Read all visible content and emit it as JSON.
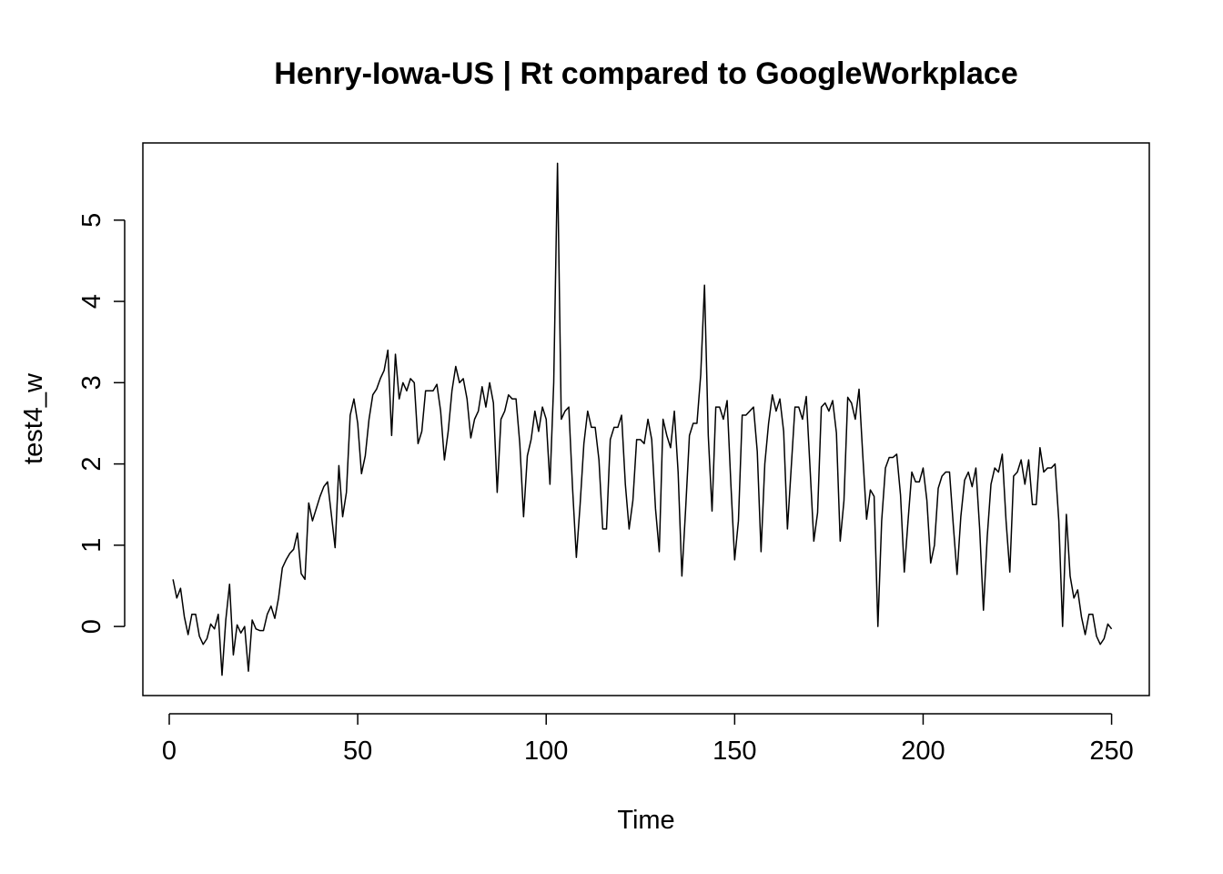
{
  "chart_data": {
    "type": "line",
    "title": "Henry-Iowa-US | Rt compared to GoogleWorkplace",
    "xlabel": "Time",
    "ylabel": "test4_w",
    "xlim": [
      -7,
      260
    ],
    "ylim": [
      -0.85,
      5.95
    ],
    "x_ticks": [
      0,
      50,
      100,
      150,
      200,
      250
    ],
    "y_ticks": [
      0,
      1,
      2,
      3,
      4,
      5
    ],
    "x_tick_labels": [
      "0",
      "50",
      "100",
      "150",
      "200",
      "250"
    ],
    "y_tick_labels": [
      "0",
      "1",
      "2",
      "3",
      "4",
      "5"
    ],
    "grid": false,
    "legend": "none",
    "x_start": 1,
    "series": [
      {
        "values": [
          0.58,
          0.35,
          0.47,
          0.12,
          -0.1,
          0.15,
          0.15,
          -0.12,
          -0.22,
          -0.15,
          0.03,
          -0.03,
          0.15,
          -0.6,
          0.08,
          0.52,
          -0.35,
          0.02,
          -0.08,
          0.0,
          -0.55,
          0.08,
          -0.03,
          -0.05,
          -0.05,
          0.15,
          0.25,
          0.1,
          0.35,
          0.72,
          0.82,
          0.9,
          0.95,
          1.15,
          0.65,
          0.58,
          1.52,
          1.3,
          1.45,
          1.6,
          1.72,
          1.78,
          1.38,
          0.97,
          1.98,
          1.35,
          1.65,
          2.6,
          2.8,
          2.5,
          1.88,
          2.1,
          2.55,
          2.85,
          2.92,
          3.05,
          3.15,
          3.4,
          2.35,
          3.35,
          2.8,
          3.0,
          2.9,
          3.05,
          3.0,
          2.25,
          2.4,
          2.9,
          2.9,
          2.9,
          2.98,
          2.65,
          2.05,
          2.4,
          2.9,
          3.2,
          3.0,
          3.05,
          2.8,
          2.32,
          2.55,
          2.65,
          2.95,
          2.7,
          3.0,
          2.75,
          1.65,
          2.55,
          2.65,
          2.85,
          2.8,
          2.8,
          2.25,
          1.35,
          2.1,
          2.3,
          2.65,
          2.4,
          2.7,
          2.55,
          1.75,
          3.0,
          5.7,
          2.55,
          2.65,
          2.7,
          1.7,
          0.85,
          1.5,
          2.25,
          2.65,
          2.45,
          2.45,
          2.05,
          1.2,
          1.2,
          2.3,
          2.45,
          2.45,
          2.6,
          1.75,
          1.2,
          1.55,
          2.3,
          2.3,
          2.25,
          2.55,
          2.3,
          1.45,
          0.92,
          2.55,
          2.35,
          2.2,
          2.65,
          1.9,
          0.62,
          1.45,
          2.35,
          2.5,
          2.5,
          3.1,
          4.2,
          2.35,
          1.42,
          2.7,
          2.7,
          2.55,
          2.78,
          1.75,
          0.82,
          1.3,
          2.6,
          2.6,
          2.65,
          2.7,
          2.15,
          0.92,
          2.0,
          2.5,
          2.85,
          2.65,
          2.8,
          2.4,
          1.2,
          1.95,
          2.7,
          2.7,
          2.55,
          2.83,
          1.95,
          1.05,
          1.4,
          2.7,
          2.75,
          2.65,
          2.78,
          2.38,
          1.05,
          1.55,
          2.82,
          2.75,
          2.55,
          2.92,
          2.1,
          1.32,
          1.68,
          1.6,
          0.0,
          1.3,
          1.95,
          2.08,
          2.08,
          2.12,
          1.62,
          0.67,
          1.3,
          1.9,
          1.78,
          1.78,
          1.95,
          1.55,
          0.78,
          1.0,
          1.7,
          1.85,
          1.9,
          1.9,
          1.25,
          0.64,
          1.35,
          1.8,
          1.9,
          1.72,
          1.95,
          1.2,
          0.2,
          1.1,
          1.75,
          1.95,
          1.9,
          2.12,
          1.3,
          0.67,
          1.85,
          1.9,
          2.05,
          1.75,
          2.05,
          1.5,
          1.5,
          2.2,
          1.9,
          1.95,
          1.95,
          2.0,
          1.3,
          0.0,
          1.38,
          0.62,
          0.35,
          0.45,
          0.12,
          -0.1,
          0.15,
          0.15,
          -0.12,
          -0.22,
          -0.15,
          0.03,
          -0.03
        ]
      }
    ]
  }
}
